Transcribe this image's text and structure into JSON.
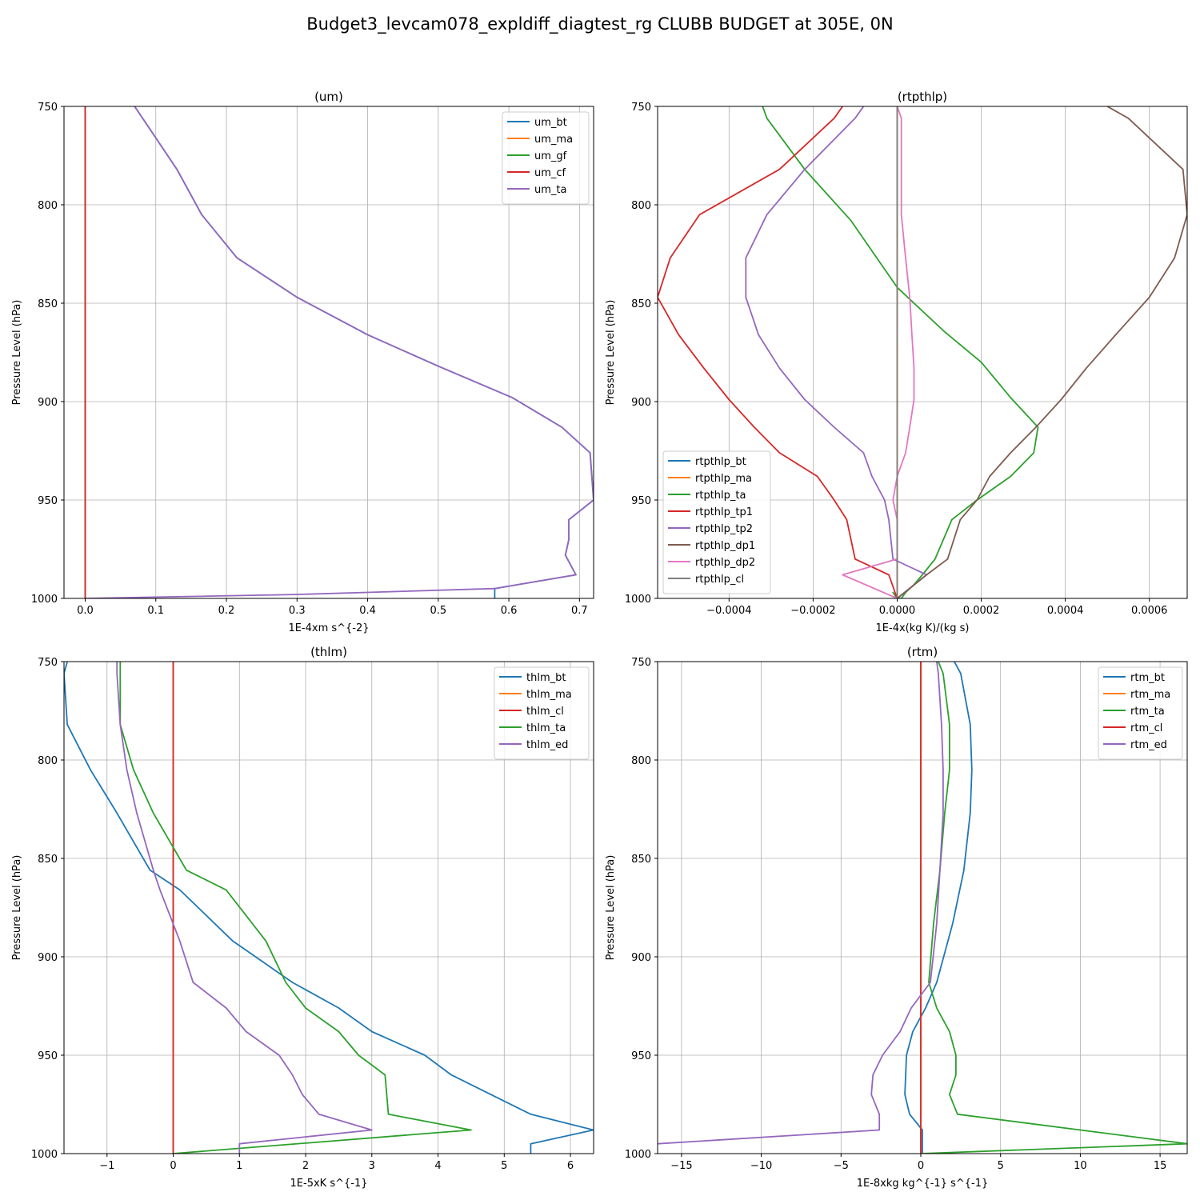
{
  "chart_data": {
    "suptitle": "Budget3_levcam078_expldiff_diagtest_rg CLUBB BUDGET at 305E, 0N",
    "panels": [
      {
        "type": "line",
        "title": "(um)",
        "xlabel": "1E-4xm s^{-2}",
        "ylabel": "Pressure Level (hPa)",
        "xlim": [
          -0.03,
          0.72
        ],
        "ylim": [
          1000,
          750
        ],
        "xticks": [
          0.0,
          0.1,
          0.2,
          0.3,
          0.4,
          0.5,
          0.6,
          0.7
        ],
        "xtick_labels": [
          "0.0",
          "0.1",
          "0.2",
          "0.3",
          "0.4",
          "0.5",
          "0.6",
          "0.7"
        ],
        "yticks": [
          750,
          800,
          850,
          900,
          950,
          1000
        ],
        "ytick_labels": [
          "750",
          "800",
          "850",
          "900",
          "950",
          "1000"
        ],
        "legend_loc": "upper right",
        "grid": true,
        "series": [
          {
            "name": "um_bt",
            "color": "#1f77b4",
            "x": [
              0.07,
              0.13,
              0.165,
              0.215,
              0.3,
              0.4,
              0.5,
              0.605,
              0.675,
              0.715,
              0.72,
              0.685,
              0.685,
              0.68,
              0.695,
              0.58,
              0.58
            ],
            "y": [
              750,
              782,
              805,
              827,
              847,
              866,
              882,
              898,
              913,
              926,
              950,
              960,
              970,
              978,
              988,
              995,
              1000
            ]
          },
          {
            "name": "um_ma",
            "color": "#ff7f0e",
            "x": [
              0.0,
              0.0
            ],
            "y": [
              750,
              1000
            ]
          },
          {
            "name": "um_gf",
            "color": "#2ca02c",
            "x": [
              0.0,
              0.0
            ],
            "y": [
              750,
              1000
            ]
          },
          {
            "name": "um_cf",
            "color": "#d62728",
            "x": [
              0.0,
              0.0
            ],
            "y": [
              750,
              1000
            ]
          },
          {
            "name": "um_ta",
            "color": "#9467bd",
            "x": [
              0.07,
              0.13,
              0.165,
              0.215,
              0.3,
              0.4,
              0.5,
              0.605,
              0.675,
              0.715,
              0.72,
              0.685,
              0.685,
              0.68,
              0.695,
              0.58,
              0.3,
              0.0
            ],
            "y": [
              750,
              782,
              805,
              827,
              847,
              866,
              882,
              898,
              913,
              926,
              950,
              960,
              970,
              978,
              988,
              995,
              998,
              1000
            ]
          }
        ]
      },
      {
        "type": "line",
        "title": "(rtpthlp)",
        "xlabel": "1E-4x(kg K)/(kg s)",
        "ylabel": "Pressure Level (hPa)",
        "xlim": [
          -0.00057,
          0.00069
        ],
        "ylim": [
          1000,
          750
        ],
        "xticks": [
          -0.0004,
          -0.0002,
          0.0,
          0.0002,
          0.0004,
          0.0006
        ],
        "xtick_labels": [
          "−0.0004",
          "−0.0002",
          "0.0000",
          "0.0002",
          "0.0004",
          "0.0006"
        ],
        "yticks": [
          750,
          800,
          850,
          900,
          950,
          1000
        ],
        "ytick_labels": [
          "750",
          "800",
          "850",
          "900",
          "950",
          "1000"
        ],
        "legend_loc": "lower left",
        "grid": true,
        "series": [
          {
            "name": "rtpthlp_bt",
            "color": "#1f77b4",
            "x": [
              0.0,
              0.0
            ],
            "y": [
              750,
              1000
            ]
          },
          {
            "name": "rtpthlp_ma",
            "color": "#ff7f0e",
            "x": [
              0.0,
              0.0
            ],
            "y": [
              750,
              1000
            ]
          },
          {
            "name": "rtpthlp_ta",
            "color": "#2ca02c",
            "x": [
              -0.00032,
              -0.00031,
              -0.00022,
              -0.00011,
              0.0,
              0.00011,
              0.0002,
              0.00027,
              0.000335,
              0.000325,
              0.00027,
              0.00019,
              0.00013,
              9e-05,
              6e-05,
              4e-05,
              2e-05,
              1e-05,
              0.0,
              -1e-05,
              0.0
            ],
            "y": [
              750,
              756,
              782,
              808,
              842,
              864,
              880,
              898,
              913,
              926,
              938,
              950,
              960,
              980,
              988,
              993,
              997,
              1000,
              1000,
              997,
              1000
            ]
          },
          {
            "name": "rtpthlp_tp1",
            "color": "#d62728",
            "x": [
              -0.00013,
              -0.00015,
              -0.00028,
              -0.00047,
              -0.00054,
              -0.00057,
              -0.00052,
              -0.00046,
              -0.0004,
              -0.00034,
              -0.00028,
              -0.00019,
              -0.00015,
              -0.00012,
              -0.0001,
              -2e-05,
              0.0
            ],
            "y": [
              750,
              756,
              782,
              805,
              827,
              847,
              866,
              883,
              899,
              913,
              926,
              938,
              950,
              960,
              980,
              988,
              1000
            ]
          },
          {
            "name": "rtpthlp_tp2",
            "color": "#9467bd",
            "x": [
              -8e-05,
              -0.0001,
              -0.00022,
              -0.00031,
              -0.00036,
              -0.00036,
              -0.00033,
              -0.00028,
              -0.00022,
              -0.00015,
              -8e-05,
              -6e-05,
              -3e-05,
              -2e-05,
              -1e-05,
              7e-05,
              0.0
            ],
            "y": [
              750,
              756,
              782,
              805,
              827,
              847,
              866,
              883,
              899,
              913,
              926,
              938,
              950,
              960,
              980,
              988,
              1000
            ]
          },
          {
            "name": "rtpthlp_dp1",
            "color": "#7f5b50",
            "x": [
              0.0005,
              0.00055,
              0.00068,
              0.00069,
              0.00066,
              0.0006,
              0.00052,
              0.00045,
              0.00039,
              0.00033,
              0.00027,
              0.00022,
              0.00019,
              0.00015,
              0.00012,
              7e-05,
              0.0
            ],
            "y": [
              750,
              756,
              782,
              805,
              827,
              847,
              866,
              883,
              899,
              913,
              926,
              938,
              950,
              960,
              980,
              988,
              1000
            ]
          },
          {
            "name": "rtpthlp_dp2",
            "color": "#e377c2",
            "x": [
              0.0,
              1e-05,
              1e-05,
              1e-05,
              2e-05,
              3e-05,
              3.5e-05,
              4e-05,
              4e-05,
              3e-05,
              2e-05,
              0.0,
              -1e-05,
              0.0,
              0.0,
              -0.00013,
              0.0
            ],
            "y": [
              750,
              756,
              782,
              805,
              827,
              847,
              866,
              883,
              899,
              913,
              926,
              938,
              950,
              960,
              980,
              988,
              1000
            ]
          },
          {
            "name": "rtpthlp_cl",
            "color": "#7f7f7f",
            "x": [
              0.0,
              0.0
            ],
            "y": [
              750,
              1000
            ]
          }
        ]
      },
      {
        "type": "line",
        "title": "(thlm)",
        "xlabel": "1E-5xK s^{-1}",
        "ylabel": "Pressure Level (hPa)",
        "xlim": [
          -1.65,
          6.35
        ],
        "ylim": [
          1000,
          750
        ],
        "xticks": [
          -1,
          0,
          1,
          2,
          3,
          4,
          5,
          6
        ],
        "xtick_labels": [
          "−1",
          "0",
          "1",
          "2",
          "3",
          "4",
          "5",
          "6"
        ],
        "yticks": [
          750,
          800,
          850,
          900,
          950,
          1000
        ],
        "ytick_labels": [
          "750",
          "800",
          "850",
          "900",
          "950",
          "1000"
        ],
        "legend_loc": "upper right",
        "grid": true,
        "series": [
          {
            "name": "thlm_bt",
            "color": "#1f77b4",
            "x": [
              -1.6,
              -1.65,
              -1.6,
              -1.25,
              -0.85,
              -0.35,
              0.1,
              0.9,
              1.8,
              2.5,
              3.0,
              3.8,
              4.2,
              4.8,
              5.4,
              6.35,
              5.4,
              5.4
            ],
            "y": [
              750,
              756,
              782,
              805,
              827,
              856,
              866,
              892,
              913,
              926,
              938,
              950,
              960,
              970,
              980,
              988,
              995,
              1000
            ]
          },
          {
            "name": "thlm_ma",
            "color": "#ff7f0e",
            "x": [
              0.0,
              0.0
            ],
            "y": [
              750,
              1000
            ]
          },
          {
            "name": "thlm_cl",
            "color": "#d62728",
            "x": [
              0.0,
              0.0
            ],
            "y": [
              750,
              1000
            ]
          },
          {
            "name": "thlm_ta",
            "color": "#2ca02c",
            "x": [
              -0.8,
              -0.8,
              -0.8,
              -0.6,
              -0.3,
              0.2,
              0.8,
              1.4,
              1.7,
              2.0,
              2.5,
              2.8,
              3.2,
              3.25,
              4.5,
              0.0
            ],
            "y": [
              750,
              756,
              782,
              805,
              827,
              856,
              866,
              892,
              913,
              926,
              938,
              950,
              960,
              980,
              988,
              1000
            ]
          },
          {
            "name": "thlm_ed",
            "color": "#9467bd",
            "x": [
              -0.85,
              -0.85,
              -0.8,
              -0.7,
              -0.55,
              -0.3,
              -0.2,
              0.1,
              0.3,
              0.8,
              1.1,
              1.6,
              1.8,
              1.95,
              2.2,
              3.0,
              1.0,
              1.0
            ],
            "y": [
              750,
              756,
              782,
              805,
              827,
              856,
              866,
              892,
              913,
              926,
              938,
              950,
              960,
              970,
              980,
              988,
              995,
              1000
            ]
          }
        ]
      },
      {
        "type": "line",
        "title": "(rtm)",
        "xlabel": "1E-8xkg kg^{-1} s^{-1}",
        "ylabel": "Pressure Level (hPa)",
        "xlim": [
          -16.5,
          16.7
        ],
        "ylim": [
          1000,
          750
        ],
        "xticks": [
          -15,
          -10,
          -5,
          0,
          5,
          10,
          15
        ],
        "xtick_labels": [
          "−15",
          "−10",
          "−5",
          "0",
          "5",
          "10",
          "15"
        ],
        "yticks": [
          750,
          800,
          850,
          900,
          950,
          1000
        ],
        "ytick_labels": [
          "750",
          "800",
          "850",
          "900",
          "950",
          "1000"
        ],
        "legend_loc": "upper right",
        "grid": true,
        "series": [
          {
            "name": "rtm_bt",
            "color": "#1f77b4",
            "x": [
              2.1,
              2.5,
              3.1,
              3.2,
              3.1,
              2.7,
              2.0,
              1.0,
              0.3,
              -0.5,
              -0.9,
              -1.0,
              -0.7,
              0.1,
              0.1
            ],
            "y": [
              750,
              756,
              782,
              805,
              827,
              856,
              883,
              913,
              926,
              938,
              950,
              970,
              980,
              988,
              1000
            ]
          },
          {
            "name": "rtm_ma",
            "color": "#ff7f0e",
            "x": [
              0.0,
              0.0
            ],
            "y": [
              750,
              1000
            ]
          },
          {
            "name": "rtm_ta",
            "color": "#2ca02c",
            "x": [
              1.1,
              1.4,
              1.8,
              1.8,
              1.5,
              1.2,
              0.8,
              0.5,
              1.0,
              1.8,
              2.2,
              2.2,
              1.8,
              2.3,
              16.7,
              0.0
            ],
            "y": [
              750,
              756,
              782,
              805,
              827,
              856,
              883,
              913,
              926,
              938,
              950,
              960,
              970,
              980,
              995,
              1000
            ]
          },
          {
            "name": "rtm_cl",
            "color": "#d62728",
            "x": [
              0.0,
              0.0
            ],
            "y": [
              750,
              1000
            ]
          },
          {
            "name": "rtm_ed",
            "color": "#9467bd",
            "x": [
              1.0,
              1.1,
              1.3,
              1.4,
              1.4,
              1.2,
              1.0,
              0.6,
              -0.6,
              -1.3,
              -2.4,
              -3.0,
              -3.1,
              -2.6,
              -2.6,
              -16.5
            ],
            "y": [
              750,
              756,
              782,
              805,
              827,
              856,
              883,
              913,
              926,
              938,
              950,
              960,
              970,
              980,
              988,
              995
            ]
          }
        ]
      }
    ]
  }
}
